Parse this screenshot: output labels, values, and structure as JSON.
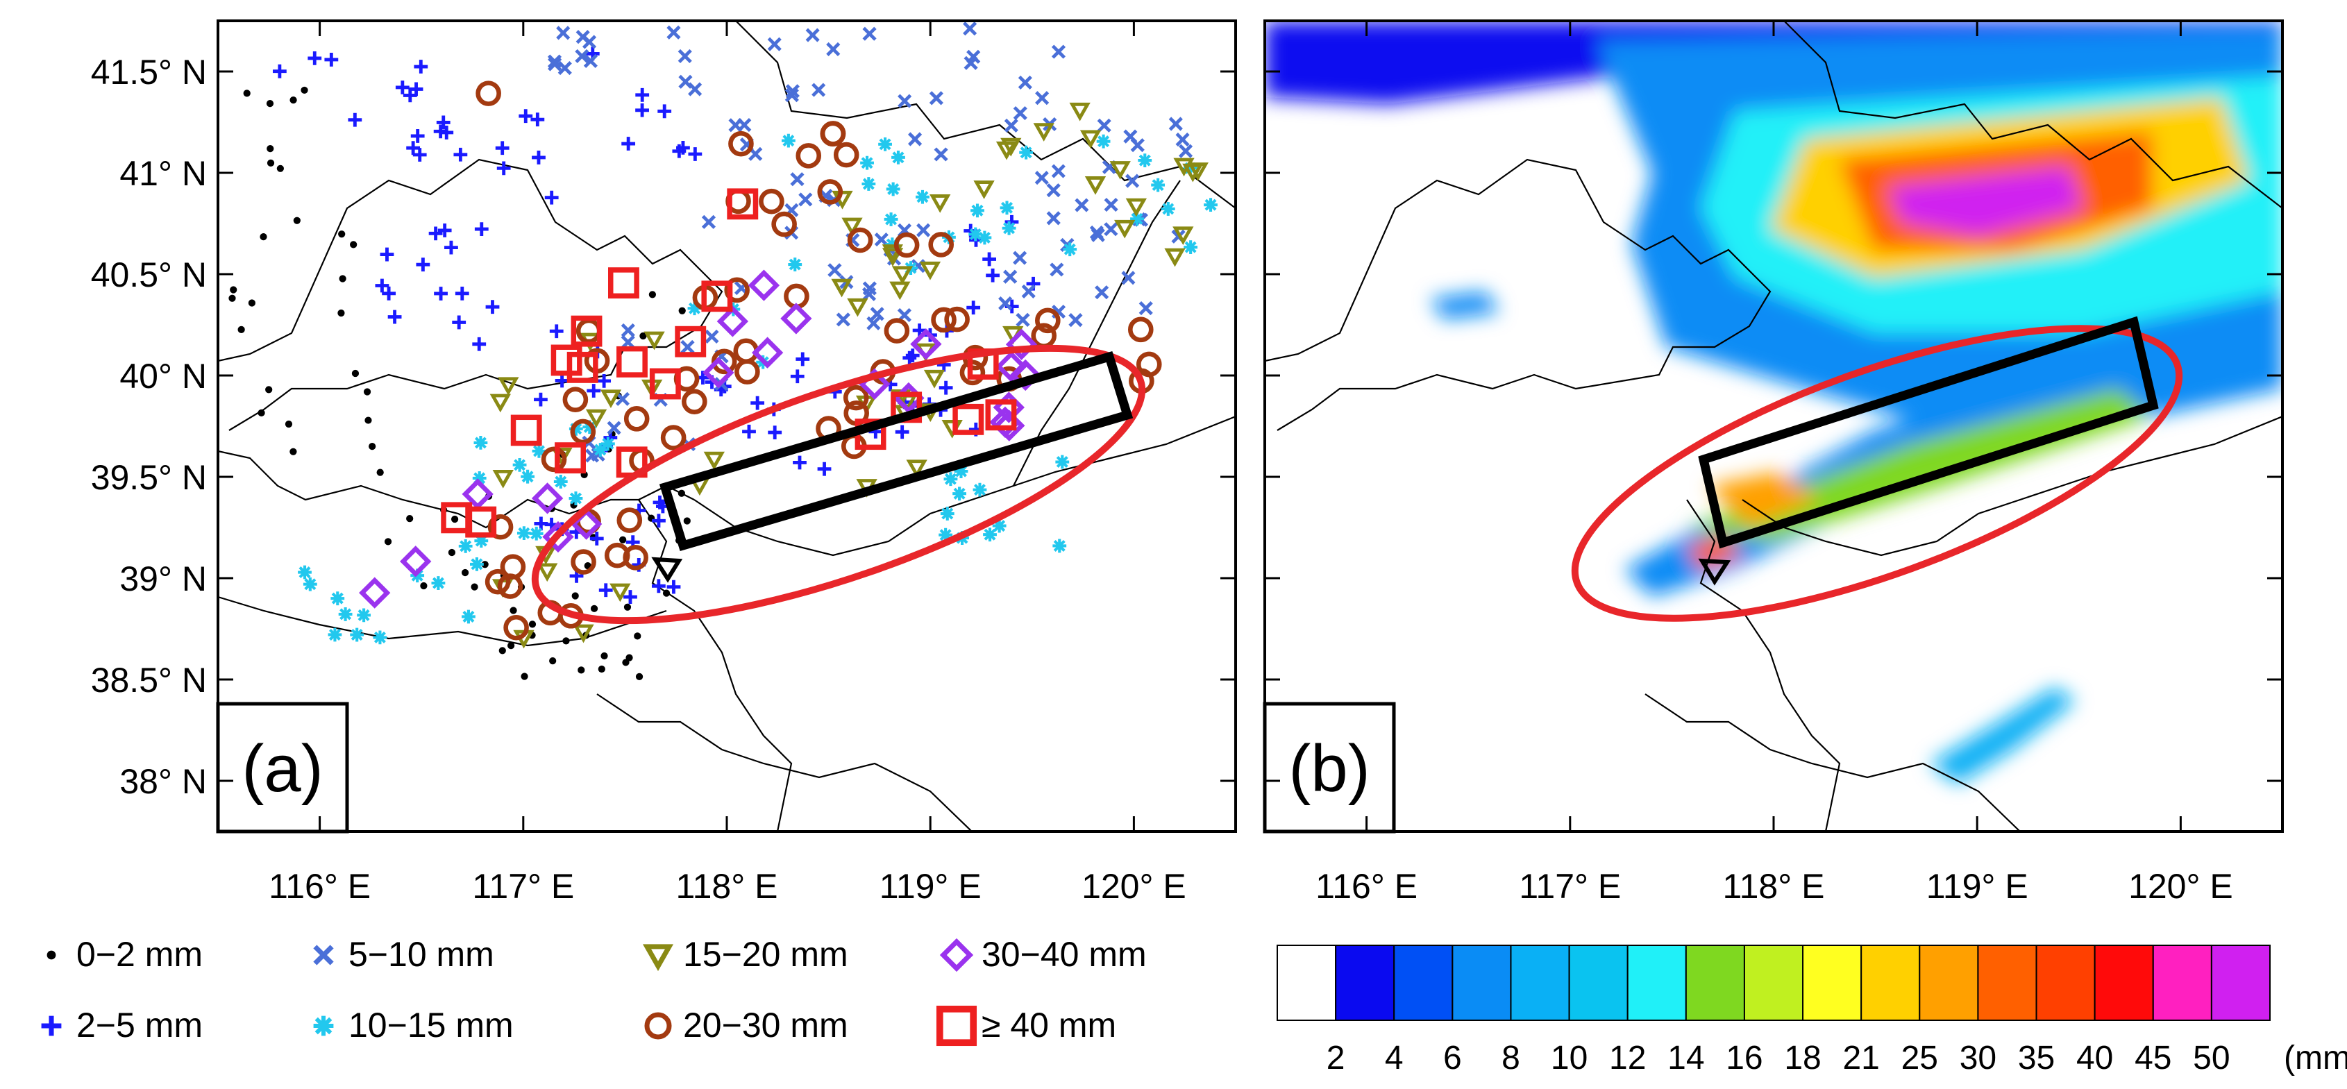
{
  "chart_data": [
    {
      "type": "scatter",
      "panel_label": "(a)",
      "description_kind": "station rainfall map",
      "x_ticks": [
        "116° E",
        "117° E",
        "118° E",
        "119° E",
        "120° E"
      ],
      "y_ticks": [
        "41.5° N",
        "41° N",
        "40.5° N",
        "40° N",
        "39.5° N",
        "39° N",
        "38.5° N",
        "38° N"
      ],
      "xlim": [
        115.5,
        120.5
      ],
      "ylim": [
        37.75,
        41.75
      ],
      "legend": [
        {
          "label": "0−2 mm",
          "marker": "dot",
          "color": "#000000"
        },
        {
          "label": "2−5 mm",
          "marker": "plus",
          "color": "#1a1aff"
        },
        {
          "label": "5−10 mm",
          "marker": "cross",
          "color": "#4a6fd8"
        },
        {
          "label": "10−15 mm",
          "marker": "asterisk",
          "color": "#22c8ee"
        },
        {
          "label": "15−20 mm",
          "marker": "triangle-down",
          "color": "#8a8a14"
        },
        {
          "label": "20−30 mm",
          "marker": "circle",
          "color": "#a33a10"
        },
        {
          "label": "30−40 mm",
          "marker": "diamond",
          "color": "#9a33ee"
        },
        {
          "label": "≥ 40 mm",
          "marker": "square",
          "color": "#ee2020"
        }
      ],
      "annotations": [
        "red ellipse: heavy-rain belt",
        "black rectangle: analysis box",
        "triangle: station"
      ]
    },
    {
      "type": "heatmap",
      "panel_label": "(b)",
      "x_ticks": [
        "116° E",
        "117° E",
        "118° E",
        "119° E",
        "120° E"
      ],
      "xlim": [
        115.5,
        120.5
      ],
      "ylim": [
        37.75,
        41.75
      ],
      "colorbar": {
        "levels": [
          "2",
          "4",
          "6",
          "8",
          "10",
          "12",
          "14",
          "16",
          "18",
          "21",
          "25",
          "30",
          "35",
          "40",
          "45",
          "50"
        ],
        "unit": "(mm)",
        "colors": [
          "#ffffff",
          "#0a0af0",
          "#0050f5",
          "#0a8cf5",
          "#0ab0f5",
          "#0ac3f0",
          "#20f0f8",
          "#7fd820",
          "#c0f020",
          "#ffff20",
          "#ffd000",
          "#ffa000",
          "#ff6000",
          "#ff4000",
          "#ff0a0a",
          "#ff20c0",
          "#d020f0"
        ]
      }
    }
  ]
}
